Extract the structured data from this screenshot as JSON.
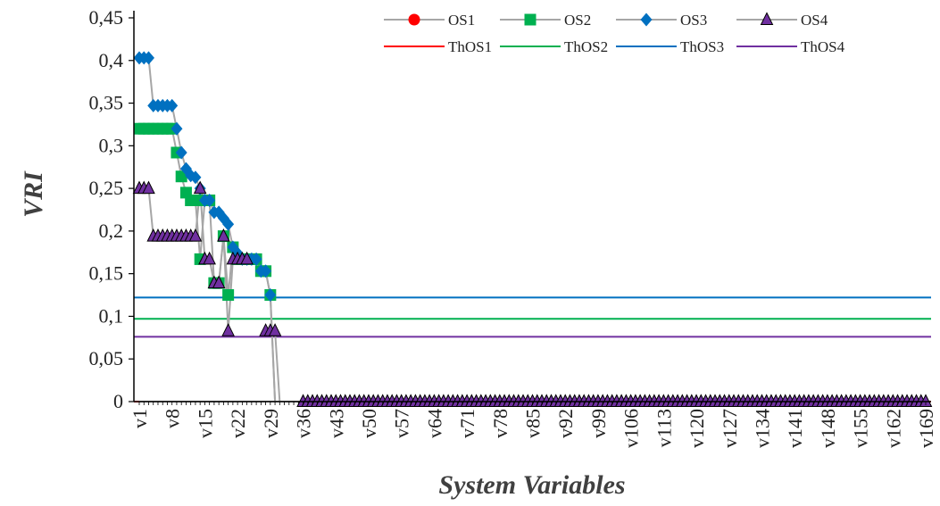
{
  "chart_data": {
    "type": "line",
    "xlabel": "System Variables",
    "ylabel": "VRI",
    "x_count": 169,
    "x_tick_every": 7,
    "ylim": [
      0,
      0.45
    ],
    "y_ticks": [
      "0",
      "0,05",
      "0,1",
      "0,15",
      "0,2",
      "0,25",
      "0,3",
      "0,35",
      "0,4",
      "0,45"
    ],
    "grid": false,
    "legend_position": "top-right",
    "series": [
      {
        "name": "OS1",
        "marker": "circle",
        "color": "#ff0000",
        "line_color": "#a6a6a6",
        "values": [
          0,
          0,
          0,
          0,
          0,
          0,
          0,
          0,
          0,
          0,
          0,
          0,
          0,
          0,
          0,
          0,
          0,
          0,
          0,
          0,
          0,
          0,
          0,
          0,
          0,
          0,
          0,
          0,
          0,
          0,
          0,
          0,
          0,
          0,
          0,
          0,
          0,
          0,
          0,
          0
        ]
      },
      {
        "name": "OS2",
        "marker": "square",
        "color": "#00b050",
        "line_color": "#a6a6a6",
        "values": [
          0.32,
          0.32,
          0.32,
          0.32,
          0.32,
          0.32,
          0.32,
          0.32,
          0.292,
          0.264,
          0.245,
          0.236,
          0.236,
          0.167,
          0.236,
          0.236,
          0.139,
          0.139,
          0.194,
          0.125,
          0.181,
          0.167,
          0.167,
          0.167,
          0.167,
          0.167,
          0.153,
          0.153,
          0.125
        ]
      },
      {
        "name": "OS3",
        "marker": "diamond",
        "color": "#0070c0",
        "line_color": "#a6a6a6",
        "values": [
          0.403,
          0.403,
          0.403,
          0.347,
          0.347,
          0.347,
          0.347,
          0.347,
          0.32,
          0.292,
          0.273,
          0.265,
          0.263,
          0.25,
          0.236,
          0.236,
          0.222,
          0.222,
          0.215,
          0.208,
          0.181,
          0.174,
          0.167,
          0.167,
          0.167,
          0.167,
          0.153,
          0.153,
          0.125
        ]
      },
      {
        "name": "OS4",
        "marker": "triangle",
        "color": "#7030a0",
        "line_color": "#a6a6a6",
        "values": [
          0.25,
          0.25,
          0.25,
          0.194,
          0.194,
          0.194,
          0.194,
          0.194,
          0.194,
          0.194,
          0.194,
          0.194,
          0.194,
          0.25,
          0.167,
          0.167,
          0.139,
          0.139,
          0.194,
          0.083,
          0.167,
          0.167,
          0.167,
          0.167,
          null,
          null,
          null,
          0.083,
          0.083,
          0.083
        ]
      },
      {
        "name": "ThOS1",
        "type": "hline",
        "y": 0,
        "color": "#ff0000"
      },
      {
        "name": "ThOS2",
        "type": "hline",
        "y": 0.097,
        "color": "#00b050"
      },
      {
        "name": "ThOS3",
        "type": "hline",
        "y": 0.122,
        "color": "#0070c0"
      },
      {
        "name": "ThOS4",
        "type": "hline",
        "y": 0.076,
        "color": "#7030a0"
      }
    ]
  }
}
